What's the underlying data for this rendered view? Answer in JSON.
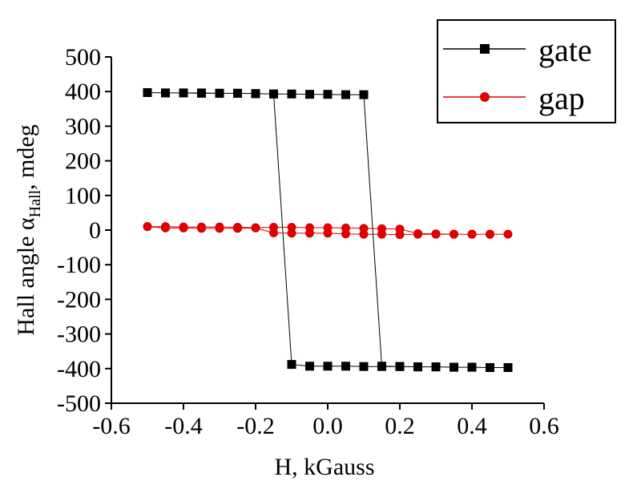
{
  "chart_data": {
    "type": "line",
    "xlabel": "H, kGauss",
    "ylabel": {
      "main": "Hall angle α",
      "sub": "Hall",
      "tail": ", mdeg"
    },
    "xlim": [
      -0.6,
      0.6
    ],
    "ylim": [
      -500,
      500
    ],
    "x_ticks": [
      "-0.6",
      "-0.4",
      "-0.2",
      "0.0",
      "0.2",
      "0.4",
      "0.6"
    ],
    "y_ticks": [
      "500",
      "400",
      "300",
      "200",
      "100",
      "0",
      "-100",
      "-200",
      "-300",
      "-400",
      "-500"
    ],
    "legend_position": "top-right",
    "series": [
      {
        "name": "gate",
        "color": "#000000",
        "marker": "square",
        "x": [
          -0.5,
          -0.45,
          -0.4,
          -0.35,
          -0.3,
          -0.25,
          -0.2,
          -0.15,
          -0.1,
          -0.05,
          0.0,
          0.05,
          0.1,
          0.15,
          0.2,
          0.25,
          0.3,
          0.35,
          0.4,
          0.45,
          0.5,
          0.45,
          0.4,
          0.35,
          0.3,
          0.25,
          0.2,
          0.15,
          0.1,
          0.05,
          0.0,
          -0.05,
          -0.1,
          -0.15,
          -0.2,
          -0.25,
          -0.3,
          -0.35,
          -0.4,
          -0.45,
          -0.5
        ],
        "y": [
          397,
          396,
          396,
          395,
          395,
          395,
          394,
          393,
          393,
          392,
          392,
          391,
          391,
          -393,
          -394,
          -395,
          -395,
          -396,
          -396,
          -397,
          -397,
          -397,
          -396,
          -396,
          -395,
          -395,
          -394,
          -394,
          -394,
          -393,
          -393,
          -393,
          -388,
          393,
          394,
          395,
          395,
          396,
          396,
          396,
          397
        ]
      },
      {
        "name": "gap",
        "color": "#e00000",
        "marker": "circle",
        "x": [
          -0.5,
          -0.45,
          -0.4,
          -0.35,
          -0.3,
          -0.25,
          -0.2,
          -0.15,
          -0.1,
          -0.05,
          0.0,
          0.05,
          0.1,
          0.15,
          0.2,
          0.25,
          0.3,
          0.35,
          0.4,
          0.45,
          0.5,
          0.45,
          0.4,
          0.35,
          0.3,
          0.25,
          0.2,
          0.15,
          0.1,
          0.05,
          0.0,
          -0.05,
          -0.1,
          -0.15,
          -0.2,
          -0.25,
          -0.3,
          -0.35,
          -0.4,
          -0.45,
          -0.5
        ],
        "y": [
          10,
          10,
          9,
          9,
          9,
          8,
          7,
          8,
          8,
          7,
          7,
          6,
          5,
          4,
          3,
          -10,
          -11,
          -12,
          -12,
          -12,
          -12,
          -12,
          -12,
          -12,
          -12,
          -12,
          -13,
          -12,
          -12,
          -11,
          -9,
          -9,
          -9,
          -8,
          6,
          5,
          5,
          5,
          6,
          6,
          10
        ]
      }
    ]
  }
}
